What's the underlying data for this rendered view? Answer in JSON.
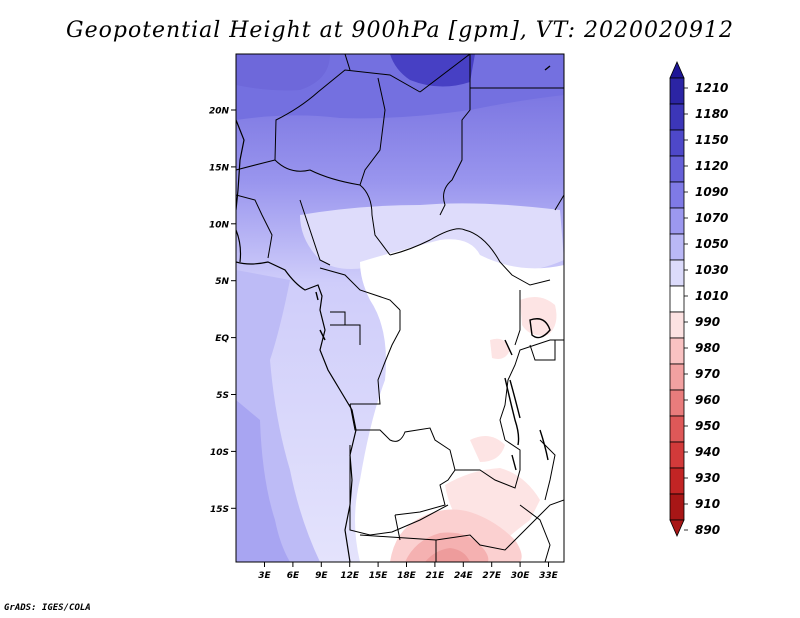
{
  "title": "Geopotential Height at 900hPa [gpm], VT: 2020020912",
  "credit": "GrADS: IGES/COLA",
  "map": {
    "lat_labels": [
      "20N",
      "15N",
      "10N",
      "5N",
      "EQ",
      "5S",
      "10S",
      "15S"
    ],
    "lon_labels": [
      "3E",
      "6E",
      "9E",
      "12E",
      "15E",
      "18E",
      "21E",
      "24E",
      "27E",
      "30E",
      "33E"
    ],
    "lat_range": [
      -20,
      25
    ],
    "lon_range": [
      1,
      35
    ]
  },
  "colorbar": {
    "levels": [
      1210,
      1180,
      1150,
      1120,
      1090,
      1070,
      1050,
      1030,
      1010,
      990,
      980,
      970,
      960,
      950,
      940,
      930,
      910,
      890
    ],
    "colors": [
      "#1e1696",
      "#2b24a4",
      "#3c36b8",
      "#4e48c9",
      "#6660d8",
      "#7f7ae6",
      "#9c98ef",
      "#bab8f6",
      "#dcdbfb",
      "#ffffff",
      "#fde2e2",
      "#f9c2c2",
      "#f2a1a1",
      "#e97c7c",
      "#de5858",
      "#d23a3a",
      "#c22424",
      "#a81616"
    ]
  }
}
